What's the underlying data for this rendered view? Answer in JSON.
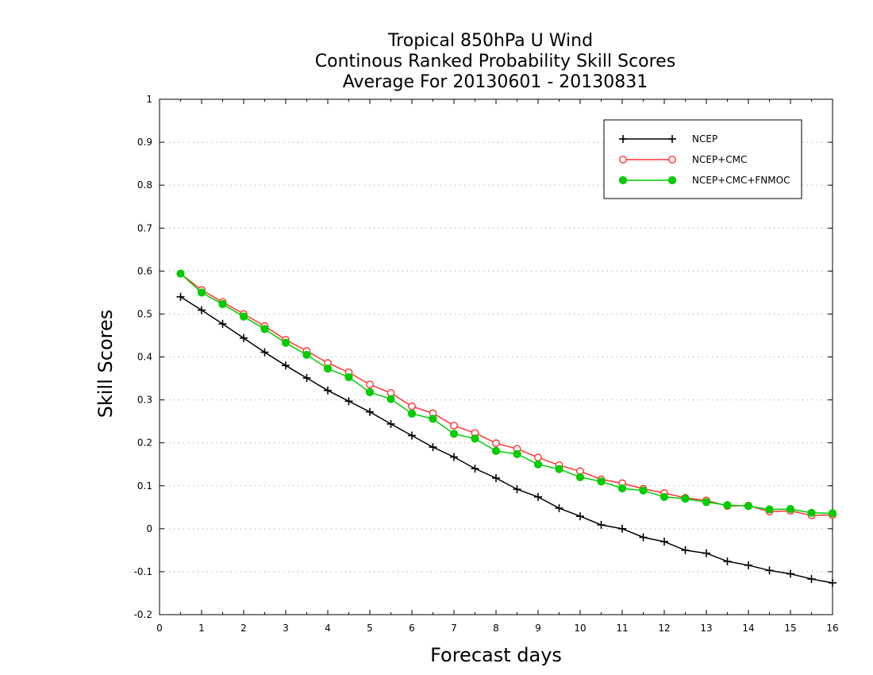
{
  "chart_data": {
    "type": "line",
    "title_lines": [
      "Tropical 850hPa U Wind",
      "Continous Ranked Probability Skill Scores",
      "Average For 20130601 - 20130831"
    ],
    "xlabel": "Forecast days",
    "ylabel": "Skill Scores",
    "xlim": [
      0,
      16
    ],
    "ylim": [
      -0.2,
      1
    ],
    "xticks": [
      "0",
      "1",
      "2",
      "3",
      "4",
      "5",
      "6",
      "7",
      "8",
      "9",
      "10",
      "11",
      "12",
      "13",
      "14",
      "15",
      "16"
    ],
    "yticks": [
      "-0.2",
      "-0.1",
      "0",
      "0.1",
      "0.2",
      "0.3",
      "0.4",
      "0.5",
      "0.6",
      "0.7",
      "0.8",
      "0.9",
      "1"
    ],
    "grid": true,
    "legend_position": "top-right",
    "x": [
      0.5,
      1,
      1.5,
      2,
      2.5,
      3,
      3.5,
      4,
      4.5,
      5,
      5.5,
      6,
      6.5,
      7,
      7.5,
      8,
      8.5,
      9,
      9.5,
      10,
      10.5,
      11,
      11.5,
      12,
      12.5,
      13,
      13.5,
      14,
      14.5,
      15,
      15.5,
      16
    ],
    "series": [
      {
        "name": "NCEP",
        "color": "#000000",
        "marker": "plus",
        "values": [
          0.54,
          0.509,
          0.477,
          0.444,
          0.411,
          0.38,
          0.351,
          0.322,
          0.297,
          0.272,
          0.244,
          0.217,
          0.19,
          0.167,
          0.14,
          0.118,
          0.092,
          0.074,
          0.048,
          0.029,
          0.009,
          0.0,
          -0.02,
          -0.03,
          -0.05,
          -0.057,
          -0.076,
          -0.085,
          -0.097,
          -0.105,
          -0.117,
          -0.126
        ]
      },
      {
        "name": "NCEP+CMC",
        "color": "#ff3333",
        "marker": "open-circle",
        "values": [
          0.594,
          0.556,
          0.528,
          0.5,
          0.472,
          0.44,
          0.414,
          0.386,
          0.364,
          0.336,
          0.316,
          0.285,
          0.269,
          0.24,
          0.223,
          0.199,
          0.186,
          0.166,
          0.148,
          0.134,
          0.115,
          0.106,
          0.093,
          0.083,
          0.072,
          0.066,
          0.053,
          0.054,
          0.04,
          0.042,
          0.031,
          0.032
        ]
      },
      {
        "name": "NCEP+CMC+FNMOC",
        "color": "#00cc00",
        "marker": "filled-circle",
        "values": [
          0.594,
          0.55,
          0.523,
          0.494,
          0.465,
          0.433,
          0.405,
          0.373,
          0.353,
          0.318,
          0.302,
          0.268,
          0.256,
          0.221,
          0.21,
          0.181,
          0.174,
          0.15,
          0.139,
          0.12,
          0.11,
          0.094,
          0.089,
          0.074,
          0.07,
          0.062,
          0.055,
          0.053,
          0.045,
          0.046,
          0.037,
          0.036
        ]
      }
    ]
  }
}
